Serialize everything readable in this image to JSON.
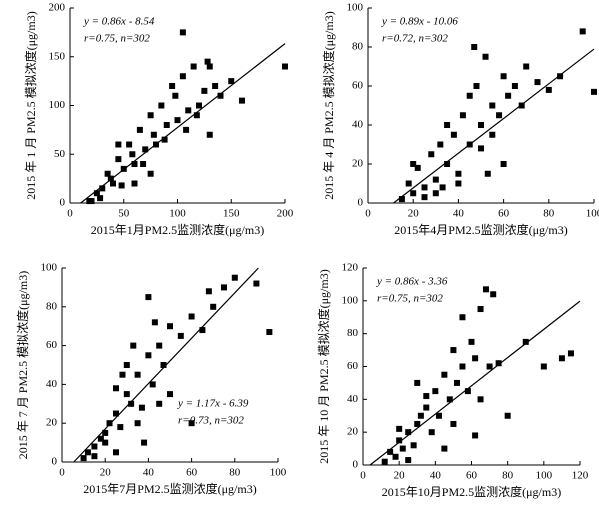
{
  "chart_data": [
    {
      "type": "scatter",
      "x_label": "2015年1月PM2.5监测浓度(μg/m3)",
      "y_label": "2015 年 1 月 PM2.5 模拟浓度(μg/m3)",
      "annotations": [
        "y = 0.86x - 8.54",
        "r=0.75, n=302"
      ],
      "annotation_corner": "top-left",
      "fit": {
        "slope": 0.86,
        "intercept": -8.54
      },
      "color": "#000000",
      "x": [
        20,
        25,
        30,
        35,
        40,
        45,
        50,
        55,
        60,
        65,
        70,
        75,
        80,
        85,
        90,
        95,
        100,
        105,
        110,
        115,
        120,
        125,
        130,
        135,
        140,
        150,
        160,
        200,
        18,
        28,
        38,
        48,
        58,
        68,
        78,
        88,
        98,
        108,
        118,
        128,
        45,
        60,
        75,
        105,
        130
      ],
      "y": [
        2,
        10,
        15,
        30,
        20,
        45,
        35,
        60,
        40,
        75,
        55,
        90,
        60,
        100,
        80,
        120,
        85,
        130,
        95,
        140,
        100,
        115,
        140,
        120,
        110,
        125,
        105,
        140,
        2,
        5,
        25,
        18,
        50,
        40,
        70,
        65,
        110,
        75,
        90,
        145,
        60,
        20,
        30,
        175,
        70
      ],
      "xlim": [
        0,
        200
      ],
      "xticks": [
        0,
        50,
        100,
        150,
        200
      ],
      "ylim": [
        0,
        200
      ],
      "yticks": [
        0,
        50,
        100,
        150,
        200
      ]
    },
    {
      "type": "scatter",
      "x_label": "2015年4月PM2.5监测浓度(μg/m3)",
      "y_label": "2015 年 4 月 PM2.5 模拟浓度(μg/m3)",
      "annotations": [
        "y = 0.89x - 10.06",
        "r=0.72, n=302"
      ],
      "annotation_corner": "top-left",
      "fit": {
        "slope": 0.89,
        "intercept": -10.06
      },
      "color": "#000000",
      "x": [
        15,
        18,
        20,
        22,
        25,
        28,
        30,
        32,
        35,
        38,
        40,
        42,
        45,
        48,
        50,
        52,
        55,
        58,
        60,
        62,
        65,
        68,
        70,
        75,
        80,
        85,
        95,
        100,
        25,
        30,
        35,
        40,
        45,
        50,
        55,
        60,
        20,
        33,
        47,
        53
      ],
      "y": [
        2,
        10,
        5,
        18,
        8,
        25,
        12,
        30,
        20,
        35,
        15,
        45,
        30,
        60,
        40,
        75,
        50,
        45,
        65,
        55,
        60,
        50,
        70,
        62,
        58,
        65,
        88,
        57,
        3,
        5,
        40,
        10,
        55,
        28,
        35,
        20,
        20,
        8,
        80,
        15
      ],
      "xlim": [
        0,
        100
      ],
      "xticks": [
        0,
        20,
        40,
        60,
        80,
        100
      ],
      "ylim": [
        0,
        100
      ],
      "yticks": [
        0,
        20,
        40,
        60,
        80,
        100
      ]
    },
    {
      "type": "scatter",
      "x_label": "2015年7月PM2.5监测浓度(μg/m3)",
      "y_label": "2015 年 7 月 PM2.5 模拟浓度(μg/m3)",
      "annotations": [
        "y = 1.17x - 6.39",
        "r=0.73, n=302"
      ],
      "annotation_corner": "bottom-right",
      "fit": {
        "slope": 1.17,
        "intercept": -6.39
      },
      "color": "#000000",
      "x": [
        10,
        12,
        15,
        18,
        20,
        22,
        25,
        27,
        30,
        32,
        35,
        37,
        40,
        42,
        45,
        47,
        50,
        55,
        60,
        65,
        70,
        75,
        80,
        90,
        96,
        15,
        20,
        25,
        30,
        35,
        40,
        45,
        28,
        33,
        38,
        50,
        60,
        25,
        43,
        68
      ],
      "y": [
        2,
        5,
        8,
        12,
        15,
        20,
        25,
        18,
        35,
        30,
        45,
        28,
        55,
        40,
        60,
        50,
        70,
        65,
        75,
        68,
        80,
        90,
        95,
        92,
        67,
        3,
        10,
        5,
        50,
        20,
        85,
        30,
        45,
        60,
        10,
        35,
        20,
        38,
        72,
        88
      ],
      "xlim": [
        0,
        100
      ],
      "xticks": [
        0,
        20,
        40,
        60,
        80,
        100
      ],
      "ylim": [
        0,
        100
      ],
      "yticks": [
        0,
        20,
        40,
        60,
        80,
        100
      ]
    },
    {
      "type": "scatter",
      "x_label": "2015年10月PM2.5监测浓度(μg/m3)",
      "y_label": "2015 年 10 月 PM2.5 模拟浓度(μg/m3)",
      "annotations": [
        "y = 0.86x - 3.36",
        "r=0.75, n=302"
      ],
      "annotation_corner": "top-left",
      "fit": {
        "slope": 0.86,
        "intercept": -3.36
      },
      "color": "#000000",
      "x": [
        12,
        15,
        18,
        20,
        22,
        25,
        28,
        30,
        32,
        35,
        38,
        40,
        42,
        45,
        48,
        50,
        52,
        55,
        58,
        60,
        62,
        65,
        68,
        70,
        75,
        80,
        90,
        100,
        110,
        115,
        20,
        25,
        35,
        45,
        55,
        65,
        30,
        50,
        62,
        72
      ],
      "y": [
        2,
        8,
        5,
        15,
        10,
        20,
        12,
        25,
        30,
        35,
        20,
        45,
        30,
        55,
        40,
        70,
        50,
        60,
        45,
        75,
        65,
        95,
        107,
        60,
        62,
        30,
        75,
        60,
        65,
        68,
        22,
        3,
        42,
        10,
        90,
        40,
        50,
        25,
        18,
        104
      ],
      "xlim": [
        0,
        120
      ],
      "xticks": [
        0,
        20,
        40,
        60,
        80,
        100,
        120
      ],
      "ylim": [
        0,
        120
      ],
      "yticks": [
        0,
        20,
        40,
        60,
        80,
        100,
        120
      ]
    }
  ]
}
